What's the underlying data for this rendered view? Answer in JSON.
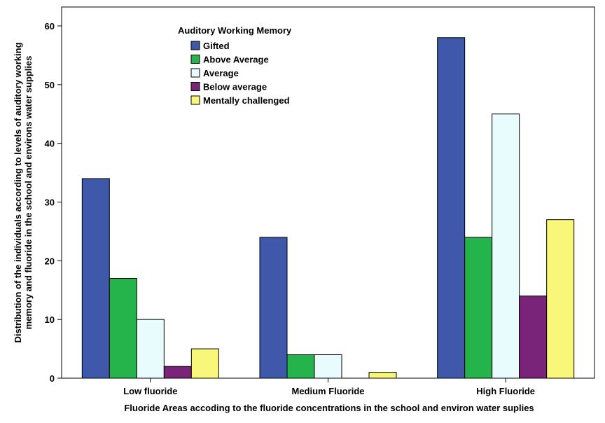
{
  "chart_data": {
    "type": "bar",
    "title": "",
    "xlabel": "Fluoride Areas accoding to the fluoride concentrations in the school and environ water suplies",
    "ylabel_lines": [
      "Distribution of the individuals according to levels of auditory working",
      "memory and fluoride in the school and environs water supplies"
    ],
    "categories": [
      "Low fluoride",
      "Medium Fluoride",
      "High Fluoride"
    ],
    "ylim": [
      0,
      60
    ],
    "yticks": [
      0,
      10,
      20,
      30,
      40,
      50,
      60
    ],
    "grid": false,
    "legend": {
      "title": "Auditory Working  Memory",
      "placement": "top-left"
    },
    "series": [
      {
        "name": "Gifted",
        "color": "#3f58a9",
        "values": [
          34,
          24,
          58
        ]
      },
      {
        "name": "Above Average",
        "color": "#25b34b",
        "values": [
          17,
          4,
          24
        ]
      },
      {
        "name": "Average",
        "color": "#e8fbfd",
        "values": [
          10,
          4,
          45
        ]
      },
      {
        "name": "Below average",
        "color": "#7a2479",
        "values": [
          2,
          0,
          14
        ]
      },
      {
        "name": "Mentally challenged",
        "color": "#f9f779",
        "values": [
          5,
          1,
          27
        ]
      }
    ]
  }
}
